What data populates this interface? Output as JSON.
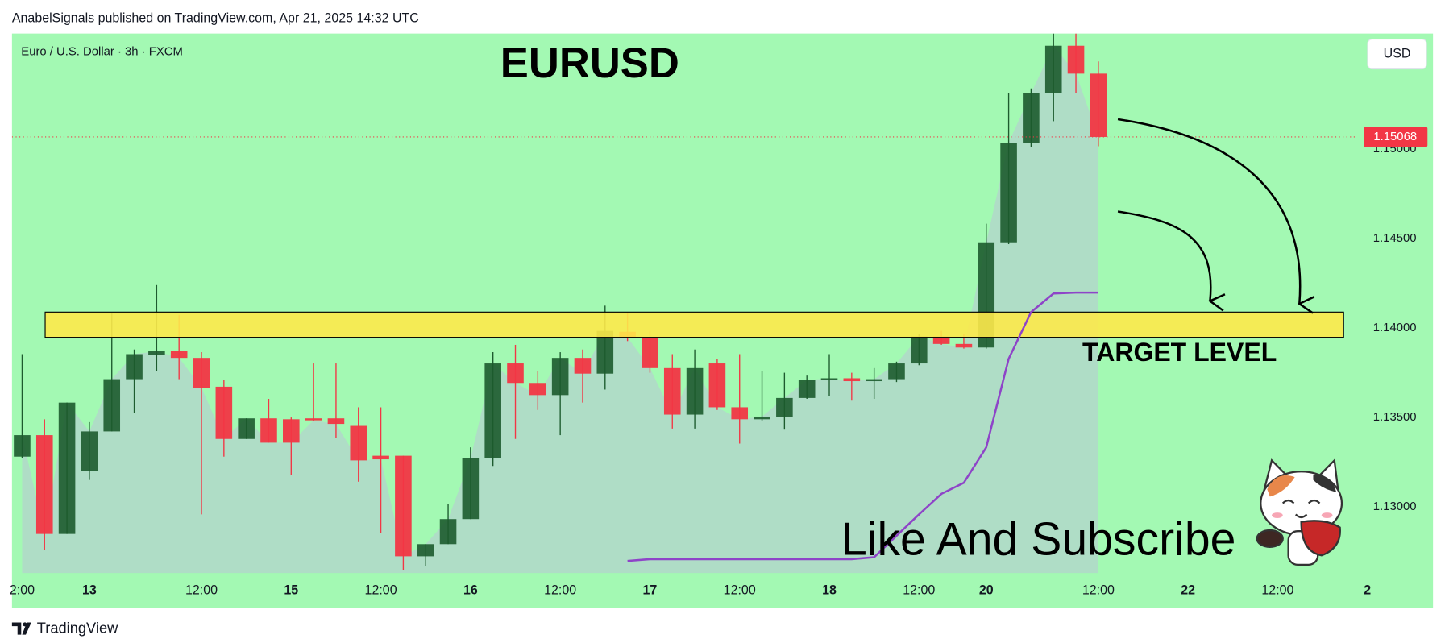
{
  "header": "AnabelSignals published on TradingView.com, Apr 21, 2025 14:32 UTC",
  "footer": "TradingView",
  "chart_data": {
    "type": "candlestick",
    "title": "EURUSD",
    "symbol": "Euro / U.S. Dollar · 3h · FXCM",
    "currency": "USD",
    "categories": [
      "2:00",
      null,
      null,
      "13",
      null,
      null,
      null,
      null,
      "12:00",
      null,
      null,
      null,
      "15",
      null,
      null,
      null,
      "12:00",
      null,
      null,
      null,
      "16",
      null,
      null,
      null,
      "12:00",
      null,
      null,
      null,
      "17",
      null,
      null,
      null,
      "12:00",
      null,
      null,
      null,
      "18",
      null,
      null,
      null,
      "12:00",
      null,
      null,
      "20",
      null,
      null,
      null,
      null,
      "12:00",
      null,
      null,
      null,
      "22",
      null,
      null,
      null,
      "12:00",
      null,
      null,
      null,
      "2"
    ],
    "open": [
      1.13281,
      1.13401,
      1.12849,
      1.13203,
      1.13422,
      1.13714,
      1.13849,
      1.1387,
      1.13833,
      1.13672,
      1.1338,
      1.13495,
      1.1349,
      1.13495,
      1.13495,
      1.13453,
      1.13286,
      1.13286,
      1.12724,
      1.12792,
      1.12932,
      1.13271,
      1.13802,
      1.13693,
      1.13625,
      1.13833,
      1.13745,
      1.13979,
      1.13948,
      1.13776,
      1.13516,
      1.13802,
      1.13557,
      1.1349,
      1.13505,
      1.13609,
      1.13708,
      1.13719,
      1.13703,
      1.13714,
      1.13802,
      1.13953,
      1.13911,
      1.13891,
      1.14479,
      1.15036,
      1.15312,
      1.15578,
      1.15422,
      null,
      null,
      null,
      null,
      null,
      null,
      null,
      null,
      null,
      null,
      null,
      null
    ],
    "high": [
      1.13854,
      1.1349,
      1.13583,
      1.13474,
      1.14083,
      1.1388,
      1.1424,
      1.14073,
      1.13865,
      1.13708,
      1.13495,
      1.13604,
      1.135,
      1.13802,
      1.13802,
      1.13557,
      1.13557,
      1.13286,
      1.12792,
      1.13016,
      1.13333,
      1.13865,
      1.13906,
      1.1376,
      1.13865,
      1.1388,
      1.14125,
      1.14089,
      1.13984,
      1.13854,
      1.1388,
      1.13828,
      1.13854,
      1.1376,
      1.1375,
      1.13734,
      1.13854,
      1.1375,
      1.13776,
      1.13812,
      1.13969,
      1.13984,
      1.13969,
      1.14583,
      1.15312,
      1.15339,
      1.15646,
      1.15646,
      1.1549,
      null,
      null,
      null,
      null,
      null,
      null,
      null,
      null,
      null,
      null,
      null,
      null
    ],
    "low": [
      1.13271,
      1.1276,
      1.12849,
      1.13151,
      1.13422,
      1.13526,
      1.1376,
      1.13714,
      1.12958,
      1.13281,
      1.1338,
      1.13359,
      1.13177,
      1.13479,
      1.13385,
      1.13141,
      1.12854,
      1.12646,
      1.12667,
      1.12792,
      1.12932,
      1.13229,
      1.1338,
      1.13542,
      1.13401,
      1.13583,
      1.13656,
      1.13927,
      1.1375,
      1.13438,
      1.13438,
      1.13542,
      1.13354,
      1.13479,
      1.13432,
      1.13604,
      1.1362,
      1.13594,
      1.13604,
      1.13698,
      1.13792,
      1.13906,
      1.13885,
      1.13885,
      1.14469,
      1.1501,
      1.15156,
      1.15312,
      1.15016,
      null,
      null,
      null,
      null,
      null,
      null,
      null,
      null,
      null,
      null,
      null,
      null
    ],
    "close": [
      1.13401,
      1.12849,
      1.13583,
      1.13422,
      1.13714,
      1.13854,
      1.1387,
      1.13833,
      1.13667,
      1.1338,
      1.13495,
      1.13359,
      1.13359,
      1.13484,
      1.13464,
      1.1326,
      1.13266,
      1.12724,
      1.12792,
      1.12932,
      1.13271,
      1.13802,
      1.13693,
      1.13625,
      1.13833,
      1.13745,
      1.13984,
      1.13948,
      1.13776,
      1.13516,
      1.13776,
      1.13557,
      1.1349,
      1.13505,
      1.13609,
      1.13708,
      1.13719,
      1.13703,
      1.13714,
      1.13802,
      1.13953,
      1.13911,
      1.13891,
      1.14479,
      1.15036,
      1.15312,
      1.15578,
      1.15422,
      1.15068,
      null,
      null,
      null,
      null,
      null,
      null,
      null,
      null,
      null,
      null,
      null,
      null
    ],
    "up_color": "#1d5b2e",
    "down_color": "#f23645",
    "area_color": "#b9c6d6",
    "indicator": {
      "color": "#8e44c8",
      "values": [
        null,
        null,
        null,
        null,
        null,
        null,
        null,
        null,
        null,
        null,
        null,
        null,
        null,
        null,
        null,
        null,
        null,
        null,
        null,
        null,
        null,
        null,
        null,
        null,
        null,
        null,
        null,
        1.12698,
        1.12708,
        1.12708,
        1.12708,
        1.12708,
        1.12708,
        1.12708,
        1.12708,
        1.12708,
        1.12708,
        1.12708,
        1.12719,
        1.12839,
        1.12958,
        1.13073,
        1.13135,
        1.13333,
        1.13828,
        1.14089,
        1.14193,
        1.14198,
        1.14198,
        null,
        null,
        null,
        null,
        null,
        null,
        null,
        null,
        null,
        null,
        null,
        null
      ]
    },
    "last_price": 1.15068,
    "last_price_color": "#f23645",
    "target_zone": {
      "label": "TARGET LEVEL",
      "range": [
        1.13948,
        1.14089
      ],
      "color": "#fde94a"
    },
    "annotation": "Like And Subscribe",
    "background": "#a3f9b3",
    "ylim": [
      1.1263,
      1.15646
    ],
    "yticks": [
      {
        "value": 1.13,
        "label": "1.13000"
      },
      {
        "value": 1.135,
        "label": "1.13500"
      },
      {
        "value": 1.14,
        "label": "1.14000"
      },
      {
        "value": 1.145,
        "label": "1.14500"
      },
      {
        "value": 1.15,
        "label": "1.15000"
      }
    ]
  }
}
